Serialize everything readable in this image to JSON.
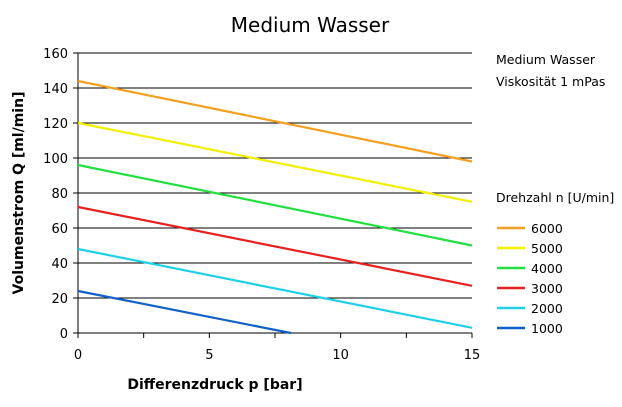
{
  "chart_data": {
    "type": "line",
    "title": "Medium Wasser",
    "xlabel": "Differenzdruck p [bar]",
    "ylabel": "Volumenstrom Q [ml/min]",
    "xlim": [
      0,
      15
    ],
    "ylim": [
      0,
      160
    ],
    "xticks": [
      0,
      5,
      10,
      15
    ],
    "yticks": [
      0,
      20,
      40,
      60,
      80,
      100,
      120,
      140,
      160
    ],
    "grid": "horizontal",
    "annotations": [
      "Medium Wasser",
      "Viskosität 1 mPas"
    ],
    "legend_title": "Drehzahl n [U/min]",
    "legend_position": "right",
    "series": [
      {
        "name": "6000",
        "color": "#f5a020",
        "x": [
          0,
          15
        ],
        "y": [
          144,
          98
        ]
      },
      {
        "name": "5000",
        "color": "#f0f000",
        "x": [
          0,
          15
        ],
        "y": [
          120,
          75
        ]
      },
      {
        "name": "4000",
        "color": "#22e040",
        "x": [
          0,
          15
        ],
        "y": [
          96,
          50
        ]
      },
      {
        "name": "3000",
        "color": "#e82020",
        "x": [
          0,
          15
        ],
        "y": [
          72,
          27
        ]
      },
      {
        "name": "2000",
        "color": "#20d0e8",
        "x": [
          0,
          15
        ],
        "y": [
          48,
          3
        ]
      },
      {
        "name": "1000",
        "color": "#1060c8",
        "x": [
          0,
          8.1
        ],
        "y": [
          24,
          0
        ]
      }
    ]
  }
}
